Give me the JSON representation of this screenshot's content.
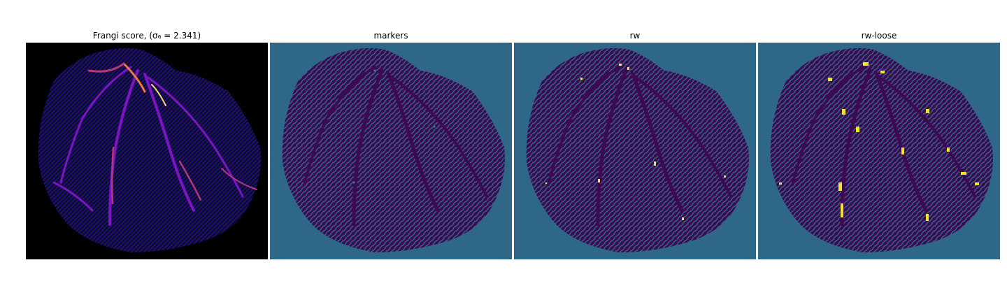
{
  "figure": {
    "panels": [
      {
        "id": "frangi",
        "title": "Frangi score, (σ₆ = 2.341)",
        "colormap": "magma",
        "background": "#000000",
        "base": "#1b0f6e",
        "vessel_colors": [
          "#7a14c6",
          "#b5367a",
          "#f07a3a",
          "#fcd76b"
        ]
      },
      {
        "id": "markers",
        "title": "markers",
        "colormap": "viridis",
        "background": "#2e6788",
        "base": "#3d0a52",
        "accent": "#2a8a8a"
      },
      {
        "id": "rw",
        "title": "rw",
        "colormap": "viridis",
        "background": "#2e6788",
        "base": "#3d0a52",
        "accent": "#3b9a86",
        "highlight": "#e6e94a"
      },
      {
        "id": "rw-loose",
        "title": "rw-loose",
        "colormap": "viridis",
        "background": "#2e6788",
        "base": "#3d0a52",
        "accent": "#3b9a86",
        "highlight": "#f2e62a"
      }
    ]
  }
}
